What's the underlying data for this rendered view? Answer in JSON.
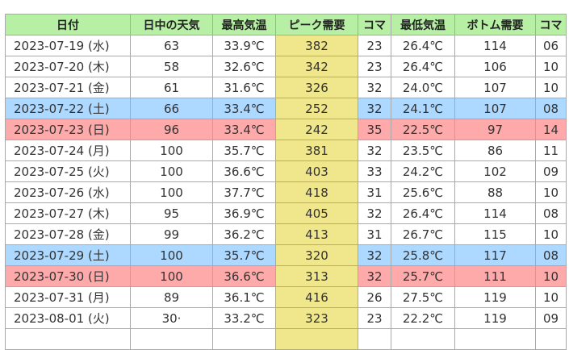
{
  "headers": [
    "日付",
    "日中の天気",
    "最高気温",
    "ピーク需要",
    "コマ",
    "最低気温",
    "ボトム需要",
    "コマ"
  ],
  "rows": [
    {
      "date": "2023-07-19 (水)",
      "weather": "63",
      "max_temp": "33.9℃",
      "peak": "382",
      "peak_koma": "23",
      "min_temp": "26.4℃",
      "bottom": "114",
      "bottom_koma": "06",
      "day_type": "weekday"
    },
    {
      "date": "2023-07-20 (木)",
      "weather": "58",
      "max_temp": "32.6℃",
      "peak": "342",
      "peak_koma": "23",
      "min_temp": "26.4℃",
      "bottom": "106",
      "bottom_koma": "10",
      "day_type": "weekday"
    },
    {
      "date": "2023-07-21 (金)",
      "weather": "61",
      "max_temp": "31.6℃",
      "peak": "326",
      "peak_koma": "32",
      "min_temp": "24.0℃",
      "bottom": "107",
      "bottom_koma": "10",
      "day_type": "weekday"
    },
    {
      "date": "2023-07-22 (土)",
      "weather": "66",
      "max_temp": "33.4℃",
      "peak": "252",
      "peak_koma": "32",
      "min_temp": "24.1℃",
      "bottom": "107",
      "bottom_koma": "08",
      "day_type": "saturday"
    },
    {
      "date": "2023-07-23 (日)",
      "weather": "96",
      "max_temp": "33.4℃",
      "peak": "242",
      "peak_koma": "35",
      "min_temp": "22.5℃",
      "bottom": "97",
      "bottom_koma": "14",
      "day_type": "sunday"
    },
    {
      "date": "2023-07-24 (月)",
      "weather": "100",
      "max_temp": "35.7℃",
      "peak": "381",
      "peak_koma": "32",
      "min_temp": "23.5℃",
      "bottom": "86",
      "bottom_koma": "11",
      "day_type": "weekday"
    },
    {
      "date": "2023-07-25 (火)",
      "weather": "100",
      "max_temp": "36.6℃",
      "peak": "403",
      "peak_koma": "33",
      "min_temp": "24.2℃",
      "bottom": "102",
      "bottom_koma": "09",
      "day_type": "weekday"
    },
    {
      "date": "2023-07-26 (水)",
      "weather": "100",
      "max_temp": "37.7℃",
      "peak": "418",
      "peak_koma": "31",
      "min_temp": "25.6℃",
      "bottom": "88",
      "bottom_koma": "10",
      "day_type": "weekday"
    },
    {
      "date": "2023-07-27 (木)",
      "weather": "95",
      "max_temp": "36.9℃",
      "peak": "405",
      "peak_koma": "32",
      "min_temp": "26.4℃",
      "bottom": "114",
      "bottom_koma": "08",
      "day_type": "weekday"
    },
    {
      "date": "2023-07-28 (金)",
      "weather": "99",
      "max_temp": "36.2℃",
      "peak": "413",
      "peak_koma": "31",
      "min_temp": "26.7℃",
      "bottom": "115",
      "bottom_koma": "10",
      "day_type": "weekday"
    },
    {
      "date": "2023-07-29 (土)",
      "weather": "100",
      "max_temp": "35.7℃",
      "peak": "320",
      "peak_koma": "32",
      "min_temp": "25.8℃",
      "bottom": "117",
      "bottom_koma": "08",
      "day_type": "saturday"
    },
    {
      "date": "2023-07-30 (日)",
      "weather": "100",
      "max_temp": "36.6℃",
      "peak": "313",
      "peak_koma": "32",
      "min_temp": "25.7℃",
      "bottom": "111",
      "bottom_koma": "10",
      "day_type": "sunday"
    },
    {
      "date": "2023-07-31 (月)",
      "weather": "89",
      "max_temp": "36.1℃",
      "peak": "416",
      "peak_koma": "26",
      "min_temp": "27.5℃",
      "bottom": "119",
      "bottom_koma": "10",
      "day_type": "weekday"
    },
    {
      "date": "2023-08-01 (火)",
      "weather": "30·",
      "max_temp": "33.2℃",
      "peak": "323",
      "peak_koma": "23",
      "min_temp": "22.2℃",
      "bottom": "119",
      "bottom_koma": "09",
      "day_type": "weekday"
    },
    {
      "date": "",
      "weather": "",
      "max_temp": "",
      "peak": "",
      "peak_koma": "",
      "min_temp": "",
      "bottom": "",
      "bottom_koma": "",
      "day_type": "weekday"
    }
  ],
  "colors": {
    "header_bg": "#b7f0a4",
    "peak_column_bg": "#f0e68c",
    "saturday_bg": "#add8ff",
    "sunday_bg": "#ffaaaa",
    "border": "#a9a9a9"
  }
}
